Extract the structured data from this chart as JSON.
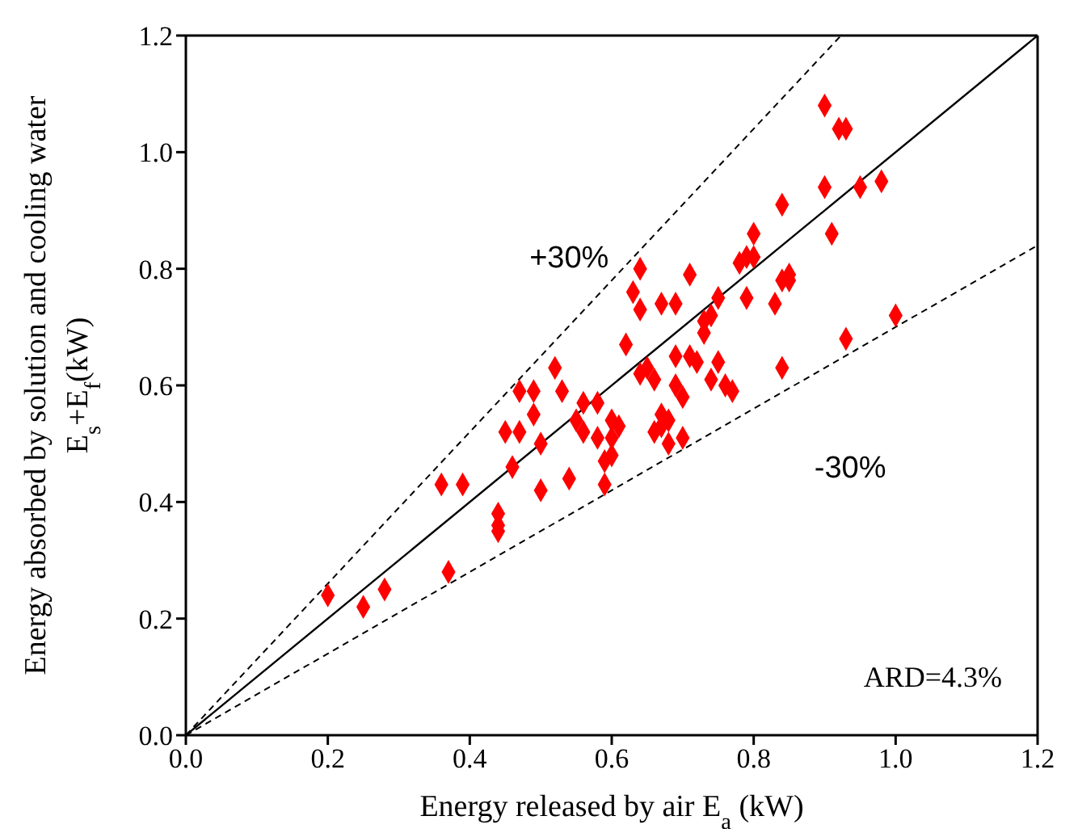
{
  "chart_data": {
    "type": "scatter",
    "xlabel": "Energy released by air E$_{a}$ (kW)",
    "ylabel": "Energy absorbed by solution and cooling water\nE$_{s}$+E$_{f}$(kW)",
    "xlim": [
      0,
      1.2
    ],
    "ylim": [
      0,
      1.2
    ],
    "xticks": [
      {
        "value": 0,
        "label": "0.0"
      },
      0.2,
      0.4,
      0.6,
      0.8,
      {
        "value": 1,
        "label": "1.0"
      },
      1.2
    ],
    "yticks": [
      {
        "value": 0,
        "label": "0.0"
      },
      0.2,
      0.4,
      0.6,
      0.8,
      {
        "value": 1,
        "label": "1.0"
      },
      1.2
    ],
    "series": [
      {
        "color": "#ff0000",
        "marker": "diamond",
        "x": [
          0.2,
          0.25,
          0.28,
          0.36,
          0.39,
          0.37,
          0.44,
          0.44,
          0.44,
          0.45,
          0.47,
          0.46,
          0.47,
          0.49,
          0.49,
          0.5,
          0.5,
          0.52,
          0.53,
          0.54,
          0.55,
          0.56,
          0.56,
          0.58,
          0.58,
          0.59,
          0.59,
          0.6,
          0.6,
          0.61,
          0.6,
          0.62,
          0.63,
          0.64,
          0.64,
          0.64,
          0.65,
          0.66,
          0.66,
          0.67,
          0.67,
          0.67,
          0.69,
          0.68,
          0.68,
          0.69,
          0.69,
          0.7,
          0.7,
          0.71,
          0.71,
          0.72,
          0.73,
          0.73,
          0.74,
          0.74,
          0.75,
          0.75,
          0.76,
          0.77,
          0.78,
          0.79,
          0.79,
          0.8,
          0.8,
          0.83,
          0.84,
          0.84,
          0.85,
          0.85,
          0.84,
          0.9,
          0.9,
          0.91,
          0.92,
          0.93,
          0.93,
          0.95,
          0.98,
          1.0
        ],
        "values": [
          0.24,
          0.22,
          0.25,
          0.43,
          0.43,
          0.28,
          0.38,
          0.36,
          0.35,
          0.52,
          0.52,
          0.46,
          0.59,
          0.59,
          0.55,
          0.5,
          0.42,
          0.63,
          0.59,
          0.44,
          0.54,
          0.52,
          0.57,
          0.57,
          0.51,
          0.47,
          0.43,
          0.54,
          0.48,
          0.53,
          0.51,
          0.67,
          0.76,
          0.73,
          0.8,
          0.62,
          0.63,
          0.52,
          0.61,
          0.55,
          0.53,
          0.74,
          0.74,
          0.54,
          0.5,
          0.65,
          0.6,
          0.58,
          0.51,
          0.65,
          0.79,
          0.64,
          0.69,
          0.71,
          0.72,
          0.61,
          0.75,
          0.64,
          0.6,
          0.59,
          0.81,
          0.82,
          0.75,
          0.86,
          0.82,
          0.74,
          0.78,
          0.63,
          0.78,
          0.79,
          0.91,
          1.08,
          0.94,
          0.86,
          1.04,
          1.04,
          0.68,
          0.94,
          0.95,
          0.72
        ]
      },
      {
        "type": "line",
        "color": "#000000",
        "line_style": "solid",
        "x": [
          0,
          1.2
        ],
        "values": [
          0,
          1.2
        ]
      },
      {
        "type": "line",
        "color": "#000000",
        "line_style": "dashed",
        "x": [
          0,
          0.923
        ],
        "values": [
          0,
          1.2
        ]
      },
      {
        "type": "line",
        "color": "#000000",
        "line_style": "dashed",
        "x": [
          0,
          1.2
        ],
        "values": [
          0,
          0.84
        ]
      }
    ],
    "annotations": [
      "+30%",
      "-30%",
      "ARD=4.3%"
    ]
  }
}
